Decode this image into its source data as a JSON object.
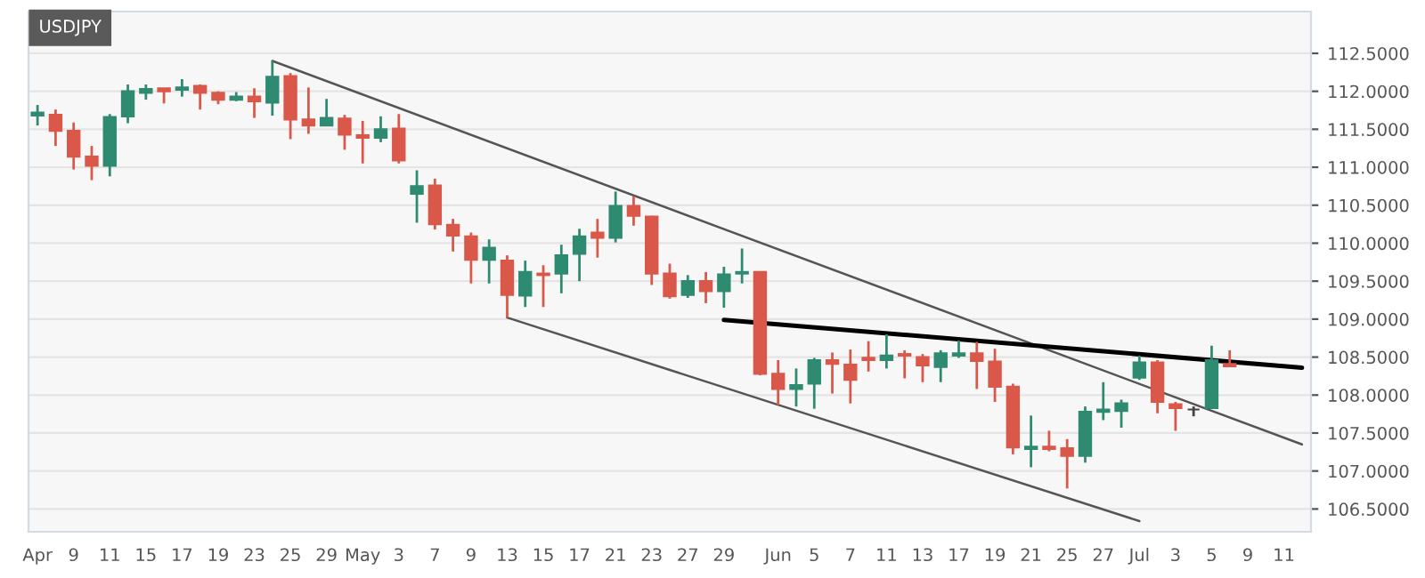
{
  "chart_data": {
    "type": "candlestick",
    "title": "USDJPY",
    "categories": [
      "Apr",
      null,
      "9",
      null,
      "11",
      null,
      "15",
      null,
      "17",
      null,
      "19",
      null,
      "23",
      null,
      "25",
      null,
      "29",
      null,
      "May",
      null,
      "3",
      null,
      "7",
      null,
      "9",
      null,
      "13",
      null,
      "15",
      null,
      "17",
      null,
      "21",
      null,
      "23",
      null,
      "27",
      null,
      "29",
      null,
      null,
      "Jun",
      null,
      "5",
      null,
      "7",
      null,
      "11",
      null,
      "13",
      null,
      "17",
      null,
      "19",
      null,
      "21",
      null,
      "25",
      null,
      "27",
      null,
      "Jul",
      null,
      "3",
      null,
      "5",
      null,
      "9",
      null,
      "11",
      null
    ],
    "ohlc": [
      [
        111.68,
        111.82,
        111.55,
        111.72
      ],
      [
        111.69,
        111.76,
        111.28,
        111.48
      ],
      [
        111.48,
        111.59,
        110.97,
        111.14
      ],
      [
        111.14,
        111.28,
        110.83,
        111.02
      ],
      [
        111.02,
        111.7,
        110.88,
        111.66
      ],
      [
        111.67,
        112.09,
        111.58,
        112.0
      ],
      [
        111.98,
        112.09,
        111.89,
        112.03
      ],
      [
        112.04,
        112.04,
        111.84,
        112.0
      ],
      [
        112.02,
        112.16,
        111.93,
        112.05
      ],
      [
        112.07,
        112.09,
        111.76,
        111.98
      ],
      [
        111.98,
        112.0,
        111.83,
        111.89
      ],
      [
        111.89,
        111.99,
        111.87,
        111.93
      ],
      [
        111.93,
        112.04,
        111.65,
        111.87
      ],
      [
        111.85,
        112.4,
        111.68,
        112.19
      ],
      [
        112.2,
        112.24,
        111.37,
        111.63
      ],
      [
        111.63,
        112.05,
        111.44,
        111.55
      ],
      [
        111.55,
        111.9,
        111.54,
        111.65
      ],
      [
        111.64,
        111.69,
        111.23,
        111.43
      ],
      [
        111.42,
        111.61,
        111.05,
        111.39
      ],
      [
        111.39,
        111.67,
        111.33,
        111.5
      ],
      [
        111.51,
        111.7,
        111.05,
        111.09
      ],
      [
        110.65,
        110.96,
        110.27,
        110.75
      ],
      [
        110.76,
        110.85,
        110.18,
        110.25
      ],
      [
        110.24,
        110.32,
        109.89,
        110.1
      ],
      [
        110.09,
        110.14,
        109.47,
        109.78
      ],
      [
        109.78,
        110.05,
        109.47,
        109.94
      ],
      [
        109.77,
        109.84,
        109.02,
        109.32
      ],
      [
        109.31,
        109.77,
        109.16,
        109.62
      ],
      [
        109.6,
        109.71,
        109.16,
        109.58
      ],
      [
        109.6,
        109.98,
        109.34,
        109.84
      ],
      [
        109.86,
        110.19,
        109.5,
        110.09
      ],
      [
        110.14,
        110.32,
        109.81,
        110.07
      ],
      [
        110.07,
        110.68,
        110.01,
        110.49
      ],
      [
        110.49,
        110.62,
        110.23,
        110.36
      ],
      [
        110.35,
        110.36,
        109.45,
        109.6
      ],
      [
        109.6,
        109.73,
        109.27,
        109.3
      ],
      [
        109.32,
        109.58,
        109.28,
        109.5
      ],
      [
        109.5,
        109.62,
        109.21,
        109.37
      ],
      [
        109.37,
        109.69,
        109.15,
        109.59
      ],
      [
        109.6,
        109.93,
        109.47,
        109.62
      ],
      [
        109.62,
        109.63,
        108.26,
        108.28
      ],
      [
        108.28,
        108.46,
        107.87,
        108.08
      ],
      [
        108.08,
        108.35,
        107.85,
        108.13
      ],
      [
        108.15,
        108.49,
        107.82,
        108.46
      ],
      [
        108.46,
        108.56,
        108.02,
        108.41
      ],
      [
        108.4,
        108.6,
        107.89,
        108.2
      ],
      [
        108.49,
        108.71,
        108.31,
        108.46
      ],
      [
        108.46,
        108.8,
        108.35,
        108.52
      ],
      [
        108.54,
        108.59,
        108.22,
        108.52
      ],
      [
        108.5,
        108.54,
        108.17,
        108.39
      ],
      [
        108.37,
        108.59,
        108.17,
        108.55
      ],
      [
        108.52,
        108.72,
        108.49,
        108.55
      ],
      [
        108.55,
        108.7,
        108.08,
        108.45
      ],
      [
        108.44,
        108.61,
        107.91,
        108.11
      ],
      [
        108.11,
        108.15,
        107.22,
        107.31
      ],
      [
        107.29,
        107.73,
        107.05,
        107.32
      ],
      [
        107.32,
        107.53,
        107.26,
        107.29
      ],
      [
        107.3,
        107.42,
        106.77,
        107.2
      ],
      [
        107.2,
        107.85,
        107.11,
        107.78
      ],
      [
        107.78,
        108.17,
        107.67,
        107.81
      ],
      [
        107.79,
        107.94,
        107.57,
        107.89
      ],
      [
        108.23,
        108.52,
        108.2,
        108.43
      ],
      [
        108.43,
        108.46,
        107.76,
        107.91
      ],
      [
        107.88,
        107.91,
        107.53,
        107.83
      ],
      [
        107.81,
        107.85,
        107.72,
        107.81
      ],
      [
        107.83,
        108.65,
        107.83,
        108.46
      ],
      [
        108.41,
        108.59,
        108.38,
        108.38
      ],
      null,
      null,
      null,
      null
    ],
    "colors": [
      "#2e8b72",
      "#d9584a",
      "#d9584a",
      "#d9584a",
      "#2e8b72",
      "#2e8b72",
      "#2e8b72",
      "#d9584a",
      "#2e8b72",
      "#d9584a",
      "#d9584a",
      "#2e8b72",
      "#d9584a",
      "#2e8b72",
      "#d9584a",
      "#d9584a",
      "#2e8b72",
      "#d9584a",
      "#d9584a",
      "#2e8b72",
      "#d9584a",
      "#2e8b72",
      "#d9584a",
      "#d9584a",
      "#d9584a",
      "#2e8b72",
      "#d9584a",
      "#2e8b72",
      "#d9584a",
      "#2e8b72",
      "#2e8b72",
      "#d9584a",
      "#2e8b72",
      "#d9584a",
      "#d9584a",
      "#d9584a",
      "#2e8b72",
      "#d9584a",
      "#2e8b72",
      "#2e8b72",
      "#d9584a",
      "#d9584a",
      "#2e8b72",
      "#2e8b72",
      "#d9584a",
      "#d9584a",
      "#d9584a",
      "#2e8b72",
      "#d9584a",
      "#d9584a",
      "#2e8b72",
      "#2e8b72",
      "#d9584a",
      "#d9584a",
      "#d9584a",
      "#2e8b72",
      "#d9584a",
      "#d9584a",
      "#2e8b72",
      "#2e8b72",
      "#2e8b72",
      "#2e8b72",
      "#d9584a",
      "#d9584a",
      "#444444",
      "#2e8b72",
      "#d9584a",
      null,
      null,
      null,
      null
    ],
    "series": [
      {
        "type": "line",
        "color": "#555555",
        "values": [
          null,
          null,
          null,
          null,
          null,
          null,
          null,
          null,
          null,
          null,
          null,
          null,
          null,
          112.4,
          null,
          null,
          null,
          null,
          null,
          null,
          null,
          null,
          null,
          null,
          null,
          null,
          null,
          null,
          null,
          null,
          null,
          null,
          null,
          null,
          null,
          null,
          null,
          null,
          null,
          null,
          null,
          null,
          null,
          null,
          null,
          null,
          null,
          null,
          null,
          null,
          null,
          null,
          null,
          null,
          null,
          null,
          null,
          null,
          null,
          null,
          null,
          null,
          null,
          null,
          null,
          null,
          null,
          null,
          null,
          null,
          107.35
        ]
      },
      {
        "type": "line",
        "color": "#555555",
        "values": [
          null,
          null,
          null,
          null,
          null,
          null,
          null,
          null,
          null,
          null,
          null,
          null,
          null,
          null,
          null,
          null,
          null,
          null,
          null,
          null,
          null,
          null,
          null,
          null,
          null,
          null,
          109.02,
          null,
          null,
          null,
          null,
          null,
          null,
          null,
          null,
          null,
          null,
          null,
          null,
          null,
          null,
          null,
          null,
          null,
          null,
          null,
          null,
          null,
          null,
          null,
          null,
          null,
          null,
          null,
          null,
          null,
          null,
          null,
          null,
          null,
          null,
          106.34,
          null,
          null,
          null,
          null,
          null,
          null,
          null,
          null,
          null
        ]
      },
      {
        "type": "line",
        "color": "#000000",
        "values": [
          null,
          null,
          null,
          null,
          null,
          null,
          null,
          null,
          null,
          null,
          null,
          null,
          null,
          null,
          null,
          null,
          null,
          null,
          null,
          null,
          null,
          null,
          null,
          null,
          null,
          null,
          null,
          null,
          null,
          null,
          null,
          null,
          null,
          null,
          null,
          null,
          null,
          null,
          108.99,
          null,
          null,
          null,
          null,
          null,
          null,
          null,
          null,
          null,
          null,
          null,
          null,
          null,
          null,
          null,
          null,
          null,
          null,
          null,
          null,
          null,
          null,
          null,
          null,
          null,
          null,
          null,
          null,
          null,
          null,
          null,
          108.36
        ]
      }
    ],
    "ylim": [
      106.2,
      113.05
    ],
    "yticks": [
      {
        "value": 106.5,
        "label": "106.5000"
      },
      {
        "value": 107.0,
        "label": "107.0000"
      },
      {
        "value": 107.5,
        "label": "107.5000"
      },
      {
        "value": 108.0,
        "label": "108.0000"
      },
      {
        "value": 108.5,
        "label": "108.5000"
      },
      {
        "value": 109.0,
        "label": "109.0000"
      },
      {
        "value": 109.5,
        "label": "109.5000"
      },
      {
        "value": 110.0,
        "label": "110.0000"
      },
      {
        "value": 110.5,
        "label": "110.5000"
      },
      {
        "value": 111.0,
        "label": "111.0000"
      },
      {
        "value": 111.5,
        "label": "111.5000"
      },
      {
        "value": 112.0,
        "label": "112.0000"
      },
      {
        "value": 112.5,
        "label": "112.5000"
      }
    ],
    "grid": "y"
  }
}
